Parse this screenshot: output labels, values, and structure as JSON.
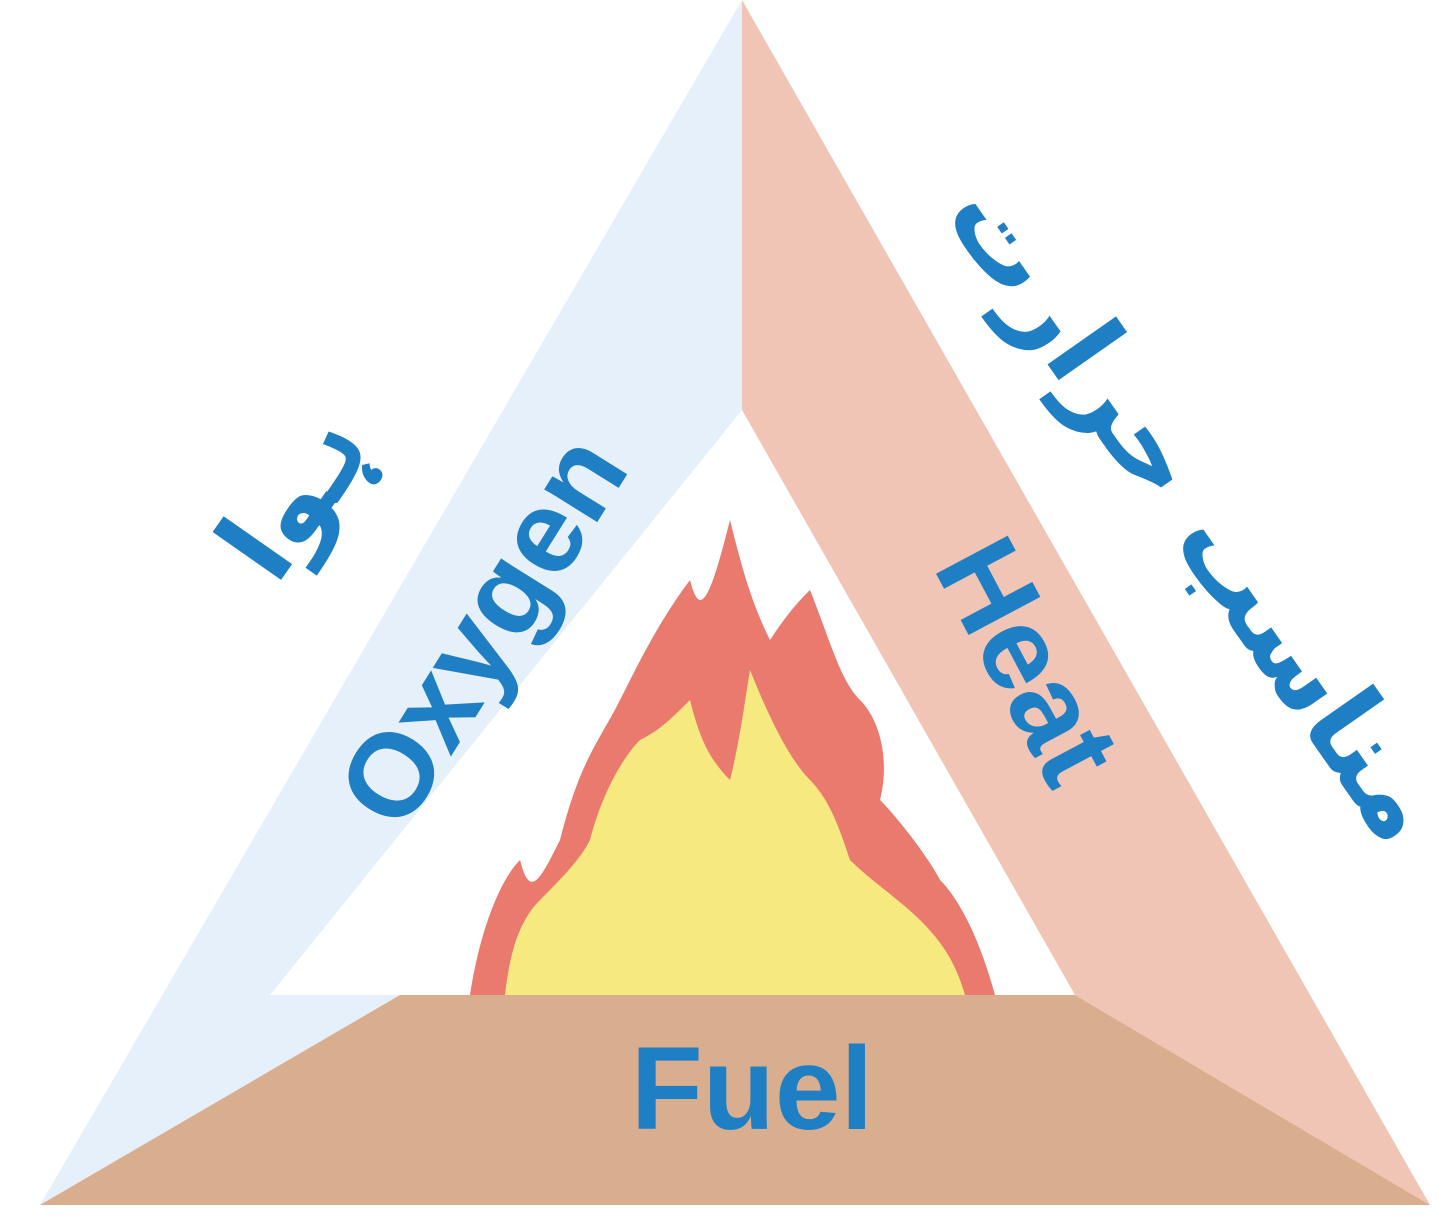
{
  "oxygen": {
    "label": "Oxygen",
    "urdu": "ہوا"
  },
  "heat": {
    "label": "Heat",
    "urdu": "مناسب حرارت"
  },
  "fuel": {
    "label": "Fuel"
  }
}
